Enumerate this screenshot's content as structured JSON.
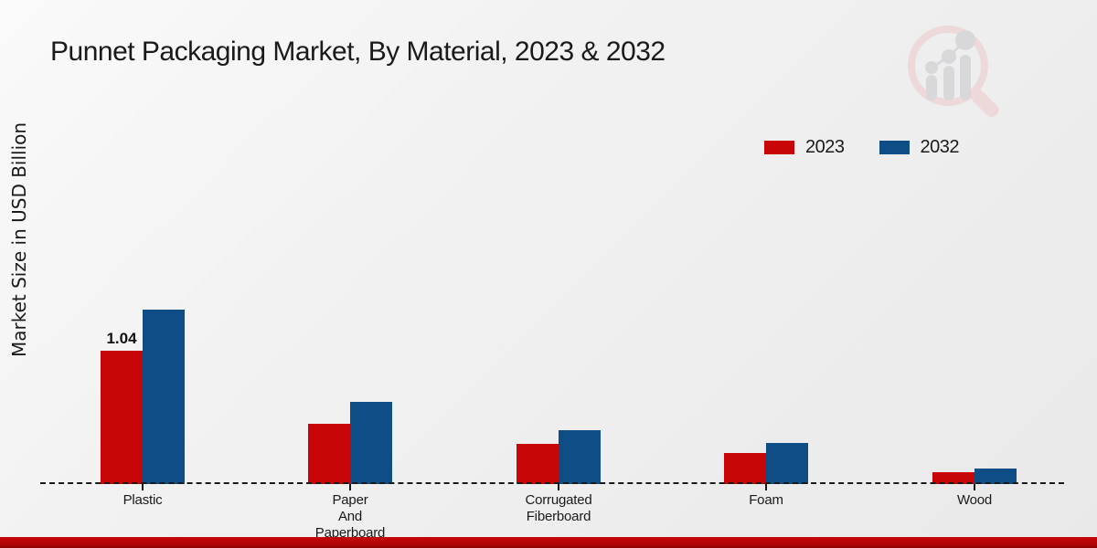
{
  "title": "Punnet Packaging Market, By Material, 2023 & 2032",
  "y_axis_label": "Market Size in USD Billion",
  "legend": {
    "items": [
      {
        "label": "2023",
        "color": "#c90607"
      },
      {
        "label": "2032",
        "color": "#0f4d87"
      }
    ]
  },
  "colors": {
    "series_2023": "#c90607",
    "series_2032": "#0f4d87",
    "bottom_strip": "#b10505",
    "dashed_baseline": "#1a1a1a",
    "title_text": "#1a1a1a"
  },
  "chart_data": {
    "type": "bar",
    "title": "Punnet Packaging Market, By Material, 2023 & 2032",
    "xlabel": "",
    "ylabel": "Market Size in USD Billion",
    "categories": [
      "Plastic",
      "Paper And Paperboard",
      "Corrugated Fiberboard",
      "Foam",
      "Wood"
    ],
    "category_label_lines": [
      [
        "Plastic"
      ],
      [
        "Paper",
        "And",
        "Paperboard"
      ],
      [
        "Corrugated",
        "Fiberboard"
      ],
      [
        "Foam"
      ],
      [
        "Wood"
      ]
    ],
    "series": [
      {
        "name": "2023",
        "color": "#c90607",
        "values": [
          1.04,
          0.47,
          0.31,
          0.24,
          0.09
        ],
        "labels": [
          "1.04",
          null,
          null,
          null,
          null
        ]
      },
      {
        "name": "2032",
        "color": "#0f4d87",
        "values": [
          1.36,
          0.64,
          0.42,
          0.32,
          0.12
        ],
        "labels": [
          null,
          null,
          null,
          null,
          null
        ]
      }
    ],
    "ylim": [
      0,
      1.6
    ],
    "y_ticks_visible": false,
    "grid": false,
    "baseline_style": "dashed",
    "legend_position": "upper right"
  }
}
